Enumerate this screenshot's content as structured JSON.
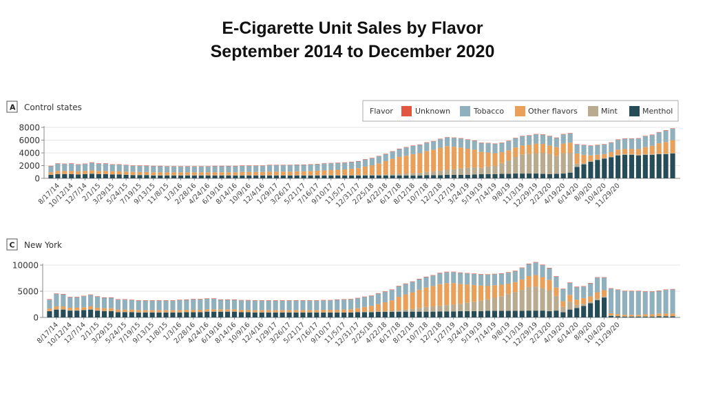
{
  "title_line1": "E-Cigarette Unit Sales by Flavor",
  "title_line2": "September 2014 to December 2020",
  "legend": {
    "title": "Flavor",
    "items": [
      {
        "name": "Unknown",
        "color": "#e2553f"
      },
      {
        "name": "Tobacco",
        "color": "#8fb0bc"
      },
      {
        "name": "Other flavors",
        "color": "#e8a05a"
      },
      {
        "name": "Mint",
        "color": "#b9ab90"
      },
      {
        "name": "Menthol",
        "color": "#264c57"
      }
    ]
  },
  "chart_data": [
    {
      "type": "bar",
      "stacked": true,
      "panel_letter": "A",
      "title": "Control states",
      "xlabel": "",
      "ylabel": "",
      "ylim": [
        0,
        8000
      ],
      "yticks": [
        0,
        2000,
        4000,
        6000,
        8000
      ],
      "ytick_labels": [
        "0",
        "2000",
        "4000",
        "6000",
        "8000"
      ],
      "grid": true,
      "legend_position": "top-right",
      "x_tick_labels": [
        "8/17/14",
        "10/12/14",
        "12/7/14",
        "2/1/15",
        "3/29/15",
        "5/24/15",
        "7/19/15",
        "9/13/15",
        "11/8/15",
        "1/3/16",
        "2/28/16",
        "4/24/16",
        "6/19/16",
        "8/14/16",
        "10/9/16",
        "12/4/16",
        "1/29/17",
        "3/26/17",
        "5/21/17",
        "7/16/17",
        "9/10/17",
        "11/5/17",
        "12/31/17",
        "2/25/18",
        "4/22/18",
        "6/17/18",
        "8/12/18",
        "10/7/18",
        "12/2/18",
        "1/27/19",
        "3/24/19",
        "5/19/19",
        "7/14/19",
        "9/8/19",
        "11/3/19",
        "12/29/19",
        "2/23/20",
        "4/19/20",
        "6/14/20",
        "8/9/20",
        "10/4/20",
        "11/29/20"
      ],
      "series": [
        {
          "name": "Menthol",
          "values": [
            550,
            650,
            650,
            650,
            600,
            650,
            700,
            650,
            650,
            600,
            600,
            550,
            500,
            500,
            500,
            450,
            450,
            450,
            450,
            450,
            450,
            450,
            450,
            450,
            450,
            450,
            450,
            450,
            450,
            450,
            450,
            450,
            450,
            450,
            450,
            450,
            450,
            450,
            450,
            450,
            450,
            450,
            450,
            450,
            450,
            450,
            450,
            450,
            450,
            450,
            450,
            450,
            450,
            450,
            450,
            500,
            500,
            500,
            550,
            550,
            550,
            550,
            600,
            650,
            650,
            650,
            700,
            700,
            750,
            750,
            750,
            750,
            700,
            650,
            700,
            750,
            900,
            1800,
            2200,
            2600,
            2900,
            3100,
            3300,
            3600,
            3700,
            3700,
            3600,
            3700,
            3700,
            3800,
            3800,
            3900
          ]
        },
        {
          "name": "Mint",
          "values": [
            50,
            50,
            50,
            50,
            50,
            50,
            50,
            50,
            50,
            50,
            50,
            50,
            50,
            50,
            50,
            50,
            50,
            50,
            50,
            50,
            50,
            50,
            50,
            50,
            50,
            50,
            50,
            50,
            50,
            50,
            50,
            50,
            50,
            50,
            50,
            50,
            50,
            50,
            50,
            50,
            50,
            50,
            50,
            50,
            50,
            50,
            100,
            100,
            100,
            150,
            200,
            250,
            300,
            350,
            400,
            500,
            600,
            700,
            800,
            900,
            1000,
            1100,
            1100,
            1000,
            1200,
            1300,
            1700,
            2100,
            2600,
            3000,
            3100,
            3200,
            3300,
            3200,
            2800,
            3200,
            3100,
            500,
            200,
            100,
            100,
            100,
            100,
            100,
            100,
            100,
            100,
            100,
            100,
            100,
            100,
            100
          ]
        },
        {
          "name": "Other flavors",
          "values": [
            350,
            450,
            450,
            450,
            450,
            450,
            500,
            450,
            450,
            450,
            450,
            450,
            450,
            450,
            450,
            450,
            450,
            450,
            450,
            450,
            450,
            450,
            450,
            450,
            450,
            450,
            450,
            450,
            500,
            500,
            500,
            500,
            550,
            550,
            550,
            550,
            600,
            600,
            650,
            700,
            750,
            800,
            850,
            900,
            1000,
            1100,
            1300,
            1500,
            1800,
            2100,
            2400,
            2700,
            2800,
            3000,
            3100,
            3300,
            3400,
            3600,
            3700,
            3500,
            3300,
            3000,
            2800,
            2500,
            2200,
            2000,
            1700,
            1600,
            1500,
            1400,
            1400,
            1500,
            1400,
            1300,
            1400,
            1500,
            1600,
            1600,
            1300,
            900,
            700,
            600,
            700,
            800,
            800,
            800,
            900,
            1100,
            1300,
            1600,
            1800,
            2000
          ]
        },
        {
          "name": "Tobacco",
          "values": [
            950,
            1150,
            1100,
            1150,
            1050,
            1100,
            1200,
            1150,
            1150,
            1050,
            1050,
            1000,
            950,
            950,
            950,
            950,
            950,
            900,
            900,
            900,
            900,
            900,
            900,
            900,
            950,
            950,
            950,
            950,
            950,
            950,
            950,
            950,
            1000,
            1000,
            1000,
            1000,
            1000,
            1000,
            1000,
            1000,
            1050,
            1050,
            1050,
            1050,
            1050,
            1050,
            1100,
            1100,
            1100,
            1100,
            1150,
            1200,
            1300,
            1300,
            1300,
            1300,
            1300,
            1350,
            1350,
            1400,
            1400,
            1400,
            1400,
            1400,
            1450,
            1450,
            1450,
            1450,
            1450,
            1450,
            1450,
            1450,
            1450,
            1450,
            1450,
            1450,
            1450,
            1400,
            1500,
            1500,
            1500,
            1500,
            1500,
            1550,
            1600,
            1600,
            1650,
            1700,
            1700,
            1700,
            1800,
            1800
          ]
        },
        {
          "name": "Unknown",
          "values": [
            60,
            60,
            60,
            60,
            60,
            60,
            60,
            60,
            60,
            60,
            60,
            60,
            60,
            60,
            60,
            60,
            60,
            60,
            60,
            60,
            60,
            60,
            60,
            60,
            60,
            60,
            60,
            60,
            60,
            60,
            60,
            60,
            60,
            60,
            60,
            60,
            60,
            60,
            60,
            60,
            60,
            60,
            60,
            60,
            60,
            60,
            60,
            60,
            60,
            60,
            60,
            60,
            60,
            60,
            60,
            60,
            60,
            60,
            60,
            60,
            60,
            60,
            60,
            60,
            60,
            60,
            60,
            60,
            60,
            60,
            60,
            60,
            60,
            60,
            60,
            60,
            60,
            60,
            60,
            60,
            60,
            60,
            60,
            60,
            60,
            60,
            60,
            60,
            60,
            60,
            60,
            60
          ]
        }
      ]
    },
    {
      "type": "bar",
      "stacked": true,
      "panel_letter": "C",
      "title": "New York",
      "xlabel": "",
      "ylabel": "",
      "ylim": [
        0,
        10000
      ],
      "yticks": [
        0,
        5000,
        10000
      ],
      "ytick_labels": [
        "0",
        "5000",
        "10000"
      ],
      "grid": true,
      "x_tick_labels": [
        "8/17/14",
        "10/12/14",
        "12/7/14",
        "2/1/15",
        "3/29/15",
        "5/24/15",
        "7/19/15",
        "9/13/15",
        "11/8/15",
        "1/3/16",
        "2/28/16",
        "4/24/16",
        "6/19/16",
        "8/14/16",
        "10/9/16",
        "12/4/16",
        "1/29/17",
        "3/26/17",
        "5/21/17",
        "7/16/17",
        "9/10/17",
        "11/5/17",
        "12/31/17",
        "2/25/18",
        "4/22/18",
        "6/17/18",
        "8/12/18",
        "10/7/18",
        "12/2/18",
        "1/27/19",
        "3/24/19",
        "5/19/19",
        "7/14/19",
        "9/8/19",
        "11/3/19",
        "12/29/19",
        "2/23/20",
        "4/19/20",
        "6/14/20",
        "8/9/20",
        "10/4/20",
        "11/29/20"
      ],
      "series": [
        {
          "name": "Menthol",
          "values": [
            1200,
            1500,
            1500,
            1300,
            1300,
            1400,
            1500,
            1300,
            1200,
            1200,
            1000,
            1000,
            1000,
            950,
            950,
            950,
            950,
            950,
            950,
            950,
            1000,
            1000,
            1000,
            1100,
            1100,
            1100,
            1100,
            1100,
            1000,
            1000,
            950,
            950,
            950,
            950,
            950,
            950,
            950,
            950,
            950,
            950,
            950,
            950,
            950,
            950,
            950,
            1000,
            1000,
            1000,
            1050,
            1050,
            1050,
            1050,
            1100,
            1100,
            1100,
            1100,
            1100,
            1150,
            1150,
            1150,
            1200,
            1200,
            1200,
            1200,
            1250,
            1250,
            1250,
            1250,
            1250,
            1250,
            1300,
            1300,
            1300,
            1200,
            1300,
            1000,
            1500,
            1800,
            2200,
            2700,
            3300,
            3800,
            300,
            200,
            150,
            150,
            150,
            150,
            150,
            200,
            200,
            200
          ]
        },
        {
          "name": "Mint",
          "values": [
            50,
            50,
            50,
            50,
            50,
            50,
            50,
            50,
            50,
            50,
            50,
            50,
            50,
            50,
            50,
            50,
            50,
            50,
            50,
            50,
            50,
            50,
            50,
            50,
            50,
            50,
            50,
            50,
            50,
            50,
            50,
            50,
            50,
            50,
            50,
            50,
            50,
            50,
            50,
            50,
            50,
            50,
            50,
            50,
            50,
            50,
            100,
            100,
            100,
            150,
            200,
            300,
            400,
            500,
            700,
            900,
            1000,
            1100,
            1200,
            1300,
            1400,
            1600,
            1800,
            2000,
            2200,
            2500,
            2800,
            3200,
            3600,
            4000,
            4500,
            4600,
            4300,
            4000,
            2800,
            1000,
            1500,
            600,
            400,
            300,
            300,
            200,
            100,
            50,
            50,
            50,
            50,
            50,
            50,
            50,
            50,
            50
          ]
        },
        {
          "name": "Other flavors",
          "values": [
            450,
            550,
            550,
            500,
            500,
            500,
            550,
            500,
            500,
            500,
            450,
            450,
            450,
            400,
            400,
            400,
            400,
            400,
            400,
            400,
            400,
            400,
            400,
            400,
            400,
            400,
            400,
            400,
            400,
            400,
            400,
            400,
            400,
            400,
            400,
            400,
            400,
            400,
            400,
            400,
            450,
            450,
            450,
            500,
            550,
            700,
            900,
            1100,
            1400,
            1700,
            2000,
            2600,
            2900,
            3200,
            3500,
            3700,
            3900,
            4100,
            4200,
            4100,
            3800,
            3500,
            3200,
            2900,
            2600,
            2400,
            2200,
            2000,
            1900,
            2000,
            2100,
            2200,
            2100,
            2000,
            1600,
            1100,
            1300,
            1000,
            1100,
            1000,
            1200,
            1200,
            400,
            400,
            300,
            300,
            300,
            400,
            400,
            500,
            500,
            500
          ]
        },
        {
          "name": "Tobacco",
          "values": [
            1700,
            2400,
            2300,
            2000,
            2000,
            2100,
            2200,
            2100,
            2000,
            2000,
            1900,
            1900,
            1800,
            1800,
            1800,
            1800,
            1800,
            1800,
            1800,
            1900,
            1900,
            2000,
            2000,
            2000,
            2000,
            1800,
            1800,
            1800,
            1800,
            1800,
            1800,
            1800,
            1800,
            1800,
            1800,
            1800,
            1800,
            1800,
            1800,
            1800,
            1800,
            1800,
            1900,
            1900,
            1900,
            1900,
            1900,
            1900,
            2000,
            2000,
            2000,
            2000,
            2000,
            2000,
            2000,
            2000,
            2000,
            2100,
            2100,
            2100,
            2100,
            2100,
            2100,
            2100,
            2100,
            2100,
            2100,
            2100,
            2100,
            2200,
            2300,
            2400,
            2300,
            2200,
            2100,
            2300,
            2300,
            2400,
            2200,
            2500,
            2800,
            2400,
            4700,
            4600,
            4500,
            4500,
            4500,
            4300,
            4300,
            4300,
            4500,
            4600
          ]
        },
        {
          "name": "Unknown",
          "values": [
            80,
            80,
            80,
            80,
            80,
            80,
            80,
            80,
            80,
            80,
            80,
            80,
            80,
            80,
            80,
            80,
            80,
            80,
            80,
            80,
            80,
            80,
            80,
            80,
            80,
            80,
            80,
            80,
            80,
            80,
            80,
            80,
            80,
            80,
            80,
            80,
            80,
            80,
            80,
            80,
            80,
            80,
            80,
            80,
            80,
            80,
            80,
            80,
            80,
            80,
            80,
            80,
            80,
            80,
            80,
            80,
            80,
            80,
            80,
            80,
            80,
            80,
            80,
            80,
            80,
            80,
            80,
            80,
            80,
            80,
            80,
            80,
            80,
            80,
            80,
            80,
            80,
            80,
            80,
            80,
            80,
            80,
            80,
            80,
            80,
            80,
            80,
            80,
            80,
            80,
            80,
            80
          ]
        }
      ]
    }
  ]
}
